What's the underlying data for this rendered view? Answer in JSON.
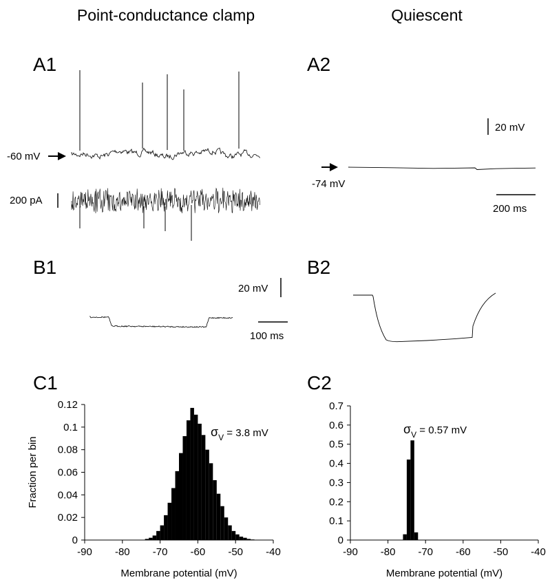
{
  "column_titles": {
    "left": "Point-conductance clamp",
    "right": "Quiescent"
  },
  "panels": {
    "a1": "A1",
    "a2": "A2",
    "b1": "B1",
    "b2": "B2",
    "c1": "C1",
    "c2": "C2"
  },
  "a1": {
    "arrow_label": "-60 mV",
    "scale_current": "200 pA"
  },
  "a2": {
    "arrow_label": "-74 mV",
    "scale_voltage": "20 mV",
    "scale_time": "200 ms"
  },
  "b1": {
    "scale_voltage": "20 mV",
    "scale_time": "100 ms"
  },
  "colors": {
    "ink": "#000000",
    "background": "#ffffff"
  },
  "chart_data": [
    {
      "id": "C1",
      "type": "bar",
      "xlabel": "Membrane potential (mV)",
      "ylabel": "Fraction per bin",
      "xlim": [
        -90,
        -40
      ],
      "ylim": [
        0,
        0.12
      ],
      "xticks": [
        "-90",
        "-80",
        "-70",
        "-60",
        "-50",
        "-40"
      ],
      "yticks": [
        "0",
        "0.02",
        "0.04",
        "0.06",
        "0.08",
        "0.1",
        "0.12"
      ],
      "bin_width": 1,
      "bin_starts": [
        -74,
        -73,
        -72,
        -71,
        -70,
        -69,
        -68,
        -67,
        -66,
        -65,
        -64,
        -63,
        -62,
        -61,
        -60,
        -59,
        -58,
        -57,
        -56,
        -55,
        -54,
        -53,
        -52,
        -51,
        -50,
        -49,
        -48,
        -47,
        -46
      ],
      "values": [
        0.001,
        0.002,
        0.004,
        0.008,
        0.013,
        0.022,
        0.033,
        0.046,
        0.061,
        0.077,
        0.092,
        0.106,
        0.117,
        0.111,
        0.103,
        0.093,
        0.08,
        0.068,
        0.053,
        0.041,
        0.03,
        0.02,
        0.013,
        0.008,
        0.005,
        0.003,
        0.002,
        0.001,
        0.0005
      ],
      "annotation": {
        "symbol": "σ",
        "subscript": "V",
        "text": " = 3.8 mV"
      }
    },
    {
      "id": "C2",
      "type": "bar",
      "xlabel": "Membrane potential (mV)",
      "ylabel": "",
      "xlim": [
        -90,
        -40
      ],
      "ylim": [
        0,
        0.7
      ],
      "xticks": [
        "-90",
        "-80",
        "-70",
        "-60",
        "-50",
        "-40"
      ],
      "yticks": [
        "0",
        "0.1",
        "0.2",
        "0.3",
        "0.4",
        "0.5",
        "0.6",
        "0.7"
      ],
      "bin_width": 1,
      "bin_starts": [
        -76,
        -75,
        -74,
        -73
      ],
      "values": [
        0.03,
        0.42,
        0.52,
        0.04
      ],
      "annotation": {
        "symbol": "σ",
        "subscript": "V",
        "text": " = 0.57 mV"
      }
    }
  ]
}
